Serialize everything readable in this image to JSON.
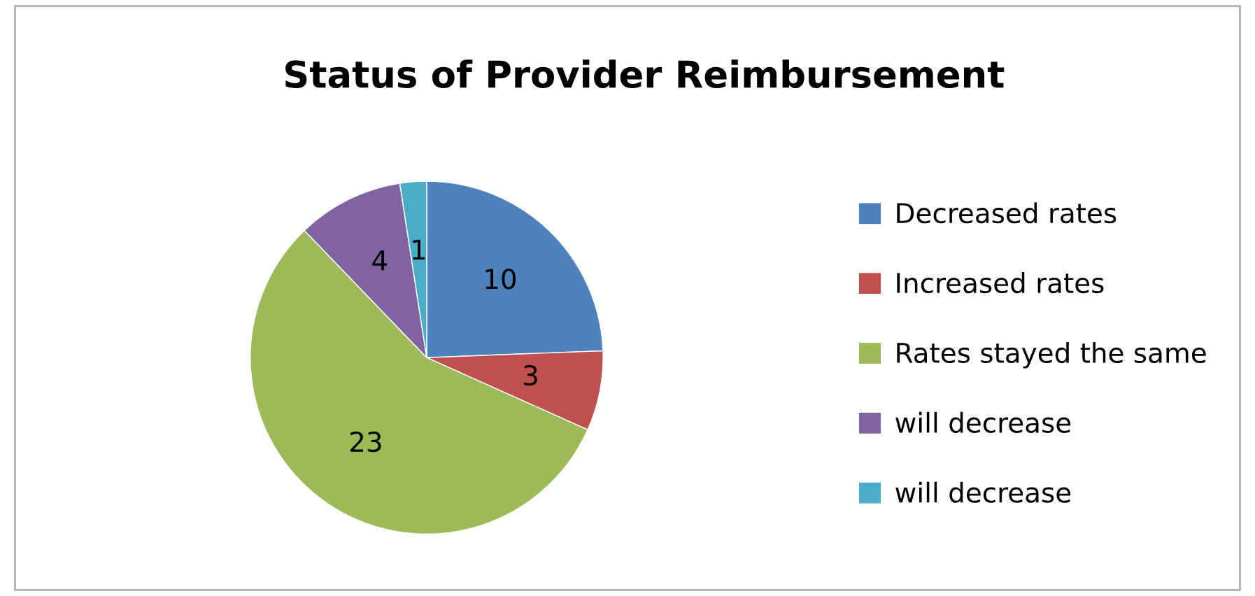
{
  "chart_data": {
    "type": "pie",
    "title": "Status of Provider Reimbursement",
    "categories": [
      "Decreased rates",
      "Increased rates",
      "Rates stayed the same",
      "will decrease",
      "will decrease"
    ],
    "values": [
      10,
      3,
      23,
      4,
      1
    ],
    "colors": [
      "#4f81bd",
      "#c0504d",
      "#9bbb59",
      "#8064a2",
      "#4bacc6"
    ],
    "data_labels": true,
    "legend": "right"
  }
}
